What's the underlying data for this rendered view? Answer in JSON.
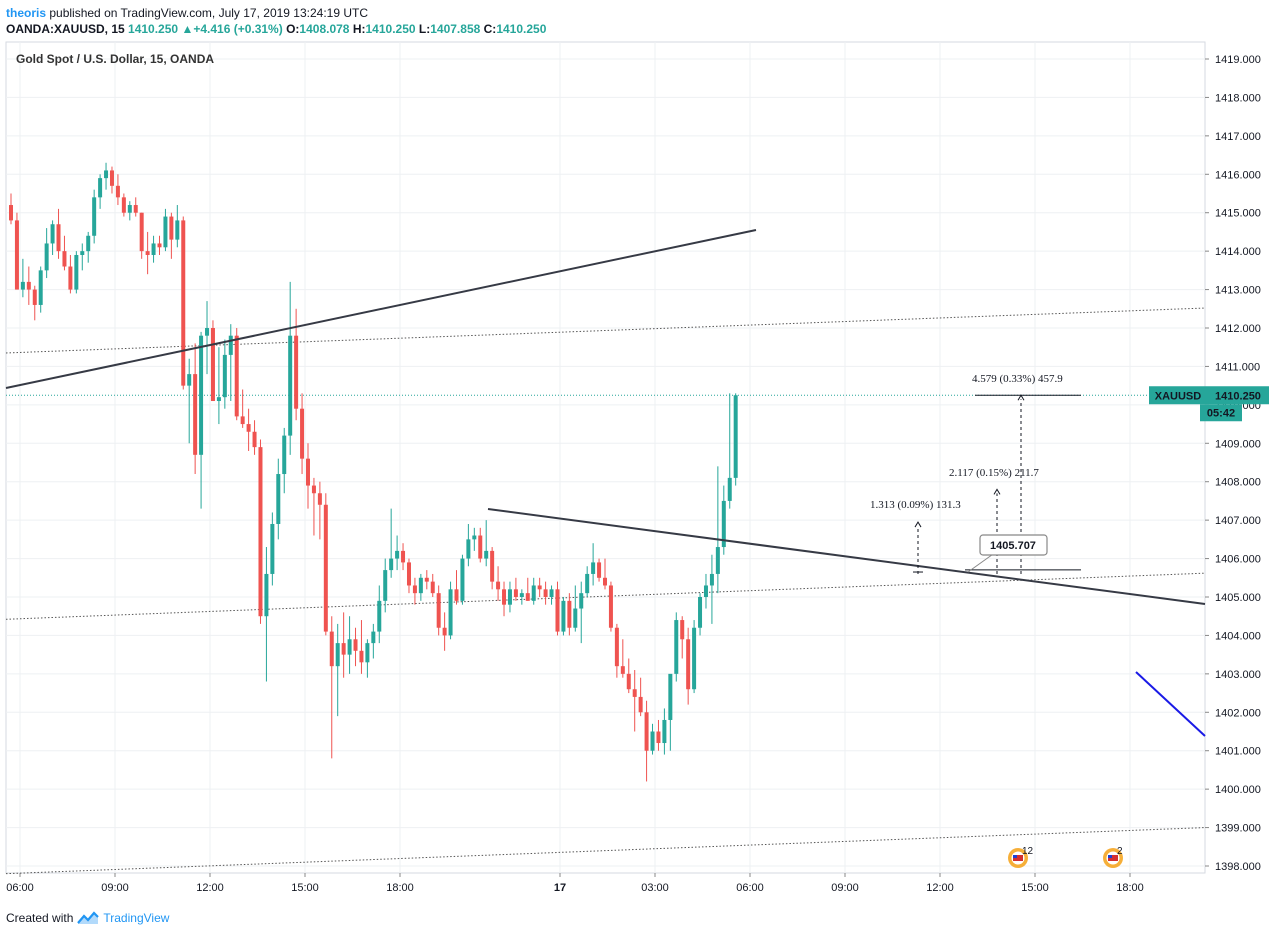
{
  "header": {
    "author": "theoris",
    "published_text": "published on TradingView.com, July 17, 2019 13:24:19 UTC"
  },
  "quote": {
    "symbol": "OANDA:XAUUSD, 15",
    "last": "1410.250",
    "change": "+4.416 (+0.31%)",
    "o_label": "O:",
    "o": "1408.078",
    "h_label": "H:",
    "h": "1410.250",
    "l_label": "L:",
    "l": "1407.858",
    "c_label": "C:",
    "c": "1410.250"
  },
  "footer": {
    "created_with": "Created with",
    "brand": "TradingView"
  },
  "colors": {
    "up": "#26a69a",
    "down": "#ef5350",
    "grid": "#eef0f3",
    "trend": "#363a45",
    "blue_line": "#1a1ae6"
  },
  "chart_data": {
    "type": "candlestick",
    "title": "Gold Spot / U.S. Dollar, 15, OANDA",
    "ylim": [
      1397.8,
      1419.5
    ],
    "y_ticks": [
      "1419.000",
      "1418.000",
      "1417.000",
      "1416.000",
      "1415.000",
      "1414.000",
      "1413.000",
      "1412.000",
      "1411.000",
      "1410.000",
      "1409.000",
      "1408.000",
      "1407.000",
      "1406.000",
      "1405.000",
      "1404.000",
      "1403.000",
      "1402.000",
      "1401.000",
      "1400.000",
      "1399.000",
      "1398.000"
    ],
    "x_ticks": [
      "06:00",
      "09:00",
      "12:00",
      "15:00",
      "18:00",
      "17",
      "03:00",
      "06:00",
      "09:00",
      "12:00",
      "15:00",
      "18:00"
    ],
    "last_price_label": "XAUUSD",
    "last_price": "1410.250",
    "countdown": "05:42",
    "ohlc": [
      [
        1415.2,
        1415.5,
        1414.7,
        1414.8
      ],
      [
        1414.8,
        1415.0,
        1413.0,
        1413.0
      ],
      [
        1413.0,
        1413.8,
        1412.8,
        1413.2
      ],
      [
        1413.2,
        1413.6,
        1412.6,
        1413.0
      ],
      [
        1413.0,
        1413.1,
        1412.2,
        1412.6
      ],
      [
        1412.6,
        1413.6,
        1412.4,
        1413.5
      ],
      [
        1413.5,
        1414.6,
        1413.3,
        1414.2
      ],
      [
        1414.2,
        1414.8,
        1413.9,
        1414.7
      ],
      [
        1414.7,
        1415.1,
        1413.8,
        1414.0
      ],
      [
        1414.0,
        1414.4,
        1413.5,
        1413.6
      ],
      [
        1413.6,
        1413.9,
        1412.9,
        1413.0
      ],
      [
        1413.0,
        1414.0,
        1412.9,
        1413.9
      ],
      [
        1413.9,
        1414.2,
        1413.5,
        1414.0
      ],
      [
        1414.0,
        1414.5,
        1413.7,
        1414.4
      ],
      [
        1414.4,
        1415.6,
        1414.2,
        1415.4
      ],
      [
        1415.4,
        1416.0,
        1415.1,
        1415.9
      ],
      [
        1415.9,
        1416.3,
        1415.6,
        1416.1
      ],
      [
        1416.1,
        1416.2,
        1415.5,
        1415.7
      ],
      [
        1415.7,
        1416.0,
        1415.2,
        1415.4
      ],
      [
        1415.4,
        1415.5,
        1414.9,
        1415.0
      ],
      [
        1415.0,
        1415.3,
        1414.8,
        1415.2
      ],
      [
        1415.2,
        1415.4,
        1414.9,
        1415.0
      ],
      [
        1415.0,
        1415.0,
        1413.8,
        1414.0
      ],
      [
        1414.0,
        1414.5,
        1413.4,
        1413.9
      ],
      [
        1413.9,
        1414.4,
        1413.7,
        1414.2
      ],
      [
        1414.2,
        1414.4,
        1413.9,
        1414.1
      ],
      [
        1414.1,
        1415.1,
        1414.0,
        1414.9
      ],
      [
        1414.9,
        1415.0,
        1413.8,
        1414.3
      ],
      [
        1414.3,
        1415.2,
        1414.1,
        1414.8
      ],
      [
        1414.8,
        1414.9,
        1410.4,
        1410.5
      ],
      [
        1410.5,
        1411.2,
        1409.0,
        1410.8
      ],
      [
        1410.8,
        1411.6,
        1408.2,
        1408.7
      ],
      [
        1408.7,
        1411.9,
        1407.3,
        1411.8
      ],
      [
        1411.8,
        1412.7,
        1410.8,
        1412.0
      ],
      [
        1412.0,
        1412.2,
        1410.2,
        1410.1
      ],
      [
        1410.1,
        1411.5,
        1409.5,
        1410.2
      ],
      [
        1410.2,
        1411.7,
        1409.9,
        1411.3
      ],
      [
        1411.3,
        1412.1,
        1410.1,
        1411.8
      ],
      [
        1411.8,
        1412.0,
        1409.6,
        1409.7
      ],
      [
        1409.7,
        1410.4,
        1409.4,
        1409.5
      ],
      [
        1409.5,
        1409.9,
        1408.8,
        1409.3
      ],
      [
        1409.3,
        1409.6,
        1408.7,
        1408.9
      ],
      [
        1408.9,
        1409.1,
        1404.3,
        1404.5
      ],
      [
        1404.5,
        1406.3,
        1402.8,
        1405.6
      ],
      [
        1405.6,
        1407.2,
        1405.3,
        1406.9
      ],
      [
        1406.9,
        1408.6,
        1406.5,
        1408.2
      ],
      [
        1408.2,
        1409.4,
        1407.7,
        1409.2
      ],
      [
        1409.2,
        1413.2,
        1408.7,
        1411.8
      ],
      [
        1411.8,
        1412.5,
        1409.6,
        1409.9
      ],
      [
        1409.9,
        1410.3,
        1408.2,
        1408.6
      ],
      [
        1408.6,
        1409.0,
        1407.3,
        1407.9
      ],
      [
        1407.9,
        1408.1,
        1406.6,
        1407.7
      ],
      [
        1407.7,
        1408.0,
        1406.5,
        1407.4
      ],
      [
        1407.4,
        1407.7,
        1404.0,
        1404.1
      ],
      [
        1404.1,
        1404.5,
        1400.8,
        1403.2
      ],
      [
        1403.2,
        1404.3,
        1401.9,
        1403.8
      ],
      [
        1403.8,
        1404.6,
        1402.9,
        1403.5
      ],
      [
        1403.5,
        1404.5,
        1403.0,
        1403.9
      ],
      [
        1403.9,
        1404.2,
        1403.2,
        1403.6
      ],
      [
        1403.6,
        1404.4,
        1403.0,
        1403.3
      ],
      [
        1403.3,
        1403.9,
        1402.9,
        1403.8
      ],
      [
        1403.8,
        1404.3,
        1403.4,
        1404.1
      ],
      [
        1404.1,
        1405.3,
        1403.8,
        1404.9
      ],
      [
        1404.9,
        1406.0,
        1404.6,
        1405.7
      ],
      [
        1405.7,
        1407.3,
        1405.5,
        1406.0
      ],
      [
        1406.0,
        1406.6,
        1405.7,
        1406.2
      ],
      [
        1406.2,
        1406.4,
        1405.7,
        1405.9
      ],
      [
        1405.9,
        1406.0,
        1405.1,
        1405.3
      ],
      [
        1405.3,
        1405.5,
        1404.8,
        1405.1
      ],
      [
        1405.1,
        1405.6,
        1404.9,
        1405.5
      ],
      [
        1405.5,
        1405.7,
        1405.2,
        1405.4
      ],
      [
        1405.4,
        1405.6,
        1405.0,
        1405.1
      ],
      [
        1405.1,
        1405.3,
        1404.0,
        1404.2
      ],
      [
        1404.2,
        1404.6,
        1403.6,
        1404.0
      ],
      [
        1404.0,
        1405.4,
        1403.9,
        1405.2
      ],
      [
        1405.2,
        1405.7,
        1404.8,
        1404.9
      ],
      [
        1404.9,
        1406.1,
        1404.8,
        1406.0
      ],
      [
        1406.0,
        1406.9,
        1405.8,
        1406.5
      ],
      [
        1406.5,
        1406.8,
        1406.2,
        1406.6
      ],
      [
        1406.6,
        1406.8,
        1405.9,
        1406.0
      ],
      [
        1406.0,
        1407.0,
        1405.8,
        1406.2
      ],
      [
        1406.2,
        1406.3,
        1405.2,
        1405.4
      ],
      [
        1405.4,
        1405.8,
        1404.9,
        1405.2
      ],
      [
        1405.2,
        1405.4,
        1404.5,
        1404.8
      ],
      [
        1404.8,
        1405.4,
        1404.6,
        1405.2
      ],
      [
        1405.2,
        1405.5,
        1404.9,
        1405.0
      ],
      [
        1405.0,
        1405.2,
        1404.8,
        1405.1
      ],
      [
        1405.1,
        1405.5,
        1404.9,
        1404.9
      ],
      [
        1404.9,
        1405.5,
        1404.8,
        1405.3
      ],
      [
        1405.3,
        1405.5,
        1405.0,
        1405.2
      ],
      [
        1405.2,
        1405.4,
        1404.8,
        1405.0
      ],
      [
        1405.0,
        1405.3,
        1404.8,
        1405.2
      ],
      [
        1405.2,
        1405.4,
        1404.0,
        1404.1
      ],
      [
        1404.1,
        1405.0,
        1404.0,
        1404.9
      ],
      [
        1404.9,
        1405.1,
        1404.0,
        1404.2
      ],
      [
        1404.2,
        1405.3,
        1404.1,
        1404.7
      ],
      [
        1404.7,
        1405.4,
        1403.8,
        1405.1
      ],
      [
        1405.1,
        1405.8,
        1405.0,
        1405.6
      ],
      [
        1405.6,
        1406.4,
        1405.3,
        1405.9
      ],
      [
        1405.9,
        1406.0,
        1405.4,
        1405.5
      ],
      [
        1405.5,
        1406.0,
        1405.2,
        1405.3
      ],
      [
        1405.3,
        1405.4,
        1404.1,
        1404.2
      ],
      [
        1404.2,
        1404.3,
        1402.9,
        1403.2
      ],
      [
        1403.2,
        1403.9,
        1402.9,
        1403.0
      ],
      [
        1403.0,
        1403.4,
        1402.5,
        1402.6
      ],
      [
        1402.6,
        1403.1,
        1401.5,
        1402.4
      ],
      [
        1402.4,
        1402.9,
        1401.9,
        1402.0
      ],
      [
        1402.0,
        1402.3,
        1400.2,
        1401.0
      ],
      [
        1401.0,
        1401.7,
        1400.9,
        1401.5
      ],
      [
        1401.5,
        1401.8,
        1401.0,
        1401.2
      ],
      [
        1401.2,
        1402.1,
        1400.9,
        1401.8
      ],
      [
        1401.8,
        1402.8,
        1401.0,
        1403.0
      ],
      [
        1403.0,
        1404.6,
        1402.8,
        1404.4
      ],
      [
        1404.4,
        1404.5,
        1403.4,
        1403.9
      ],
      [
        1403.9,
        1404.2,
        1402.2,
        1402.6
      ],
      [
        1402.6,
        1404.4,
        1402.5,
        1404.2
      ],
      [
        1404.2,
        1405.1,
        1404.0,
        1405.0
      ],
      [
        1405.0,
        1405.6,
        1404.7,
        1405.3
      ],
      [
        1405.3,
        1406.1,
        1404.3,
        1405.6
      ],
      [
        1405.6,
        1408.4,
        1405.1,
        1406.3
      ],
      [
        1406.3,
        1407.9,
        1406.1,
        1407.5
      ],
      [
        1407.5,
        1410.3,
        1407.3,
        1408.1
      ],
      [
        1408.1,
        1410.3,
        1407.9,
        1410.25
      ]
    ],
    "annotations": [
      {
        "text": "4.579 (0.33%) 457.9"
      },
      {
        "text": "2.117 (0.15%) 211.7"
      },
      {
        "text": "1.313 (0.09%) 131.3"
      },
      {
        "text": "1405.707"
      }
    ],
    "event_badges": [
      {
        "count": "12"
      },
      {
        "count": "2"
      }
    ]
  }
}
